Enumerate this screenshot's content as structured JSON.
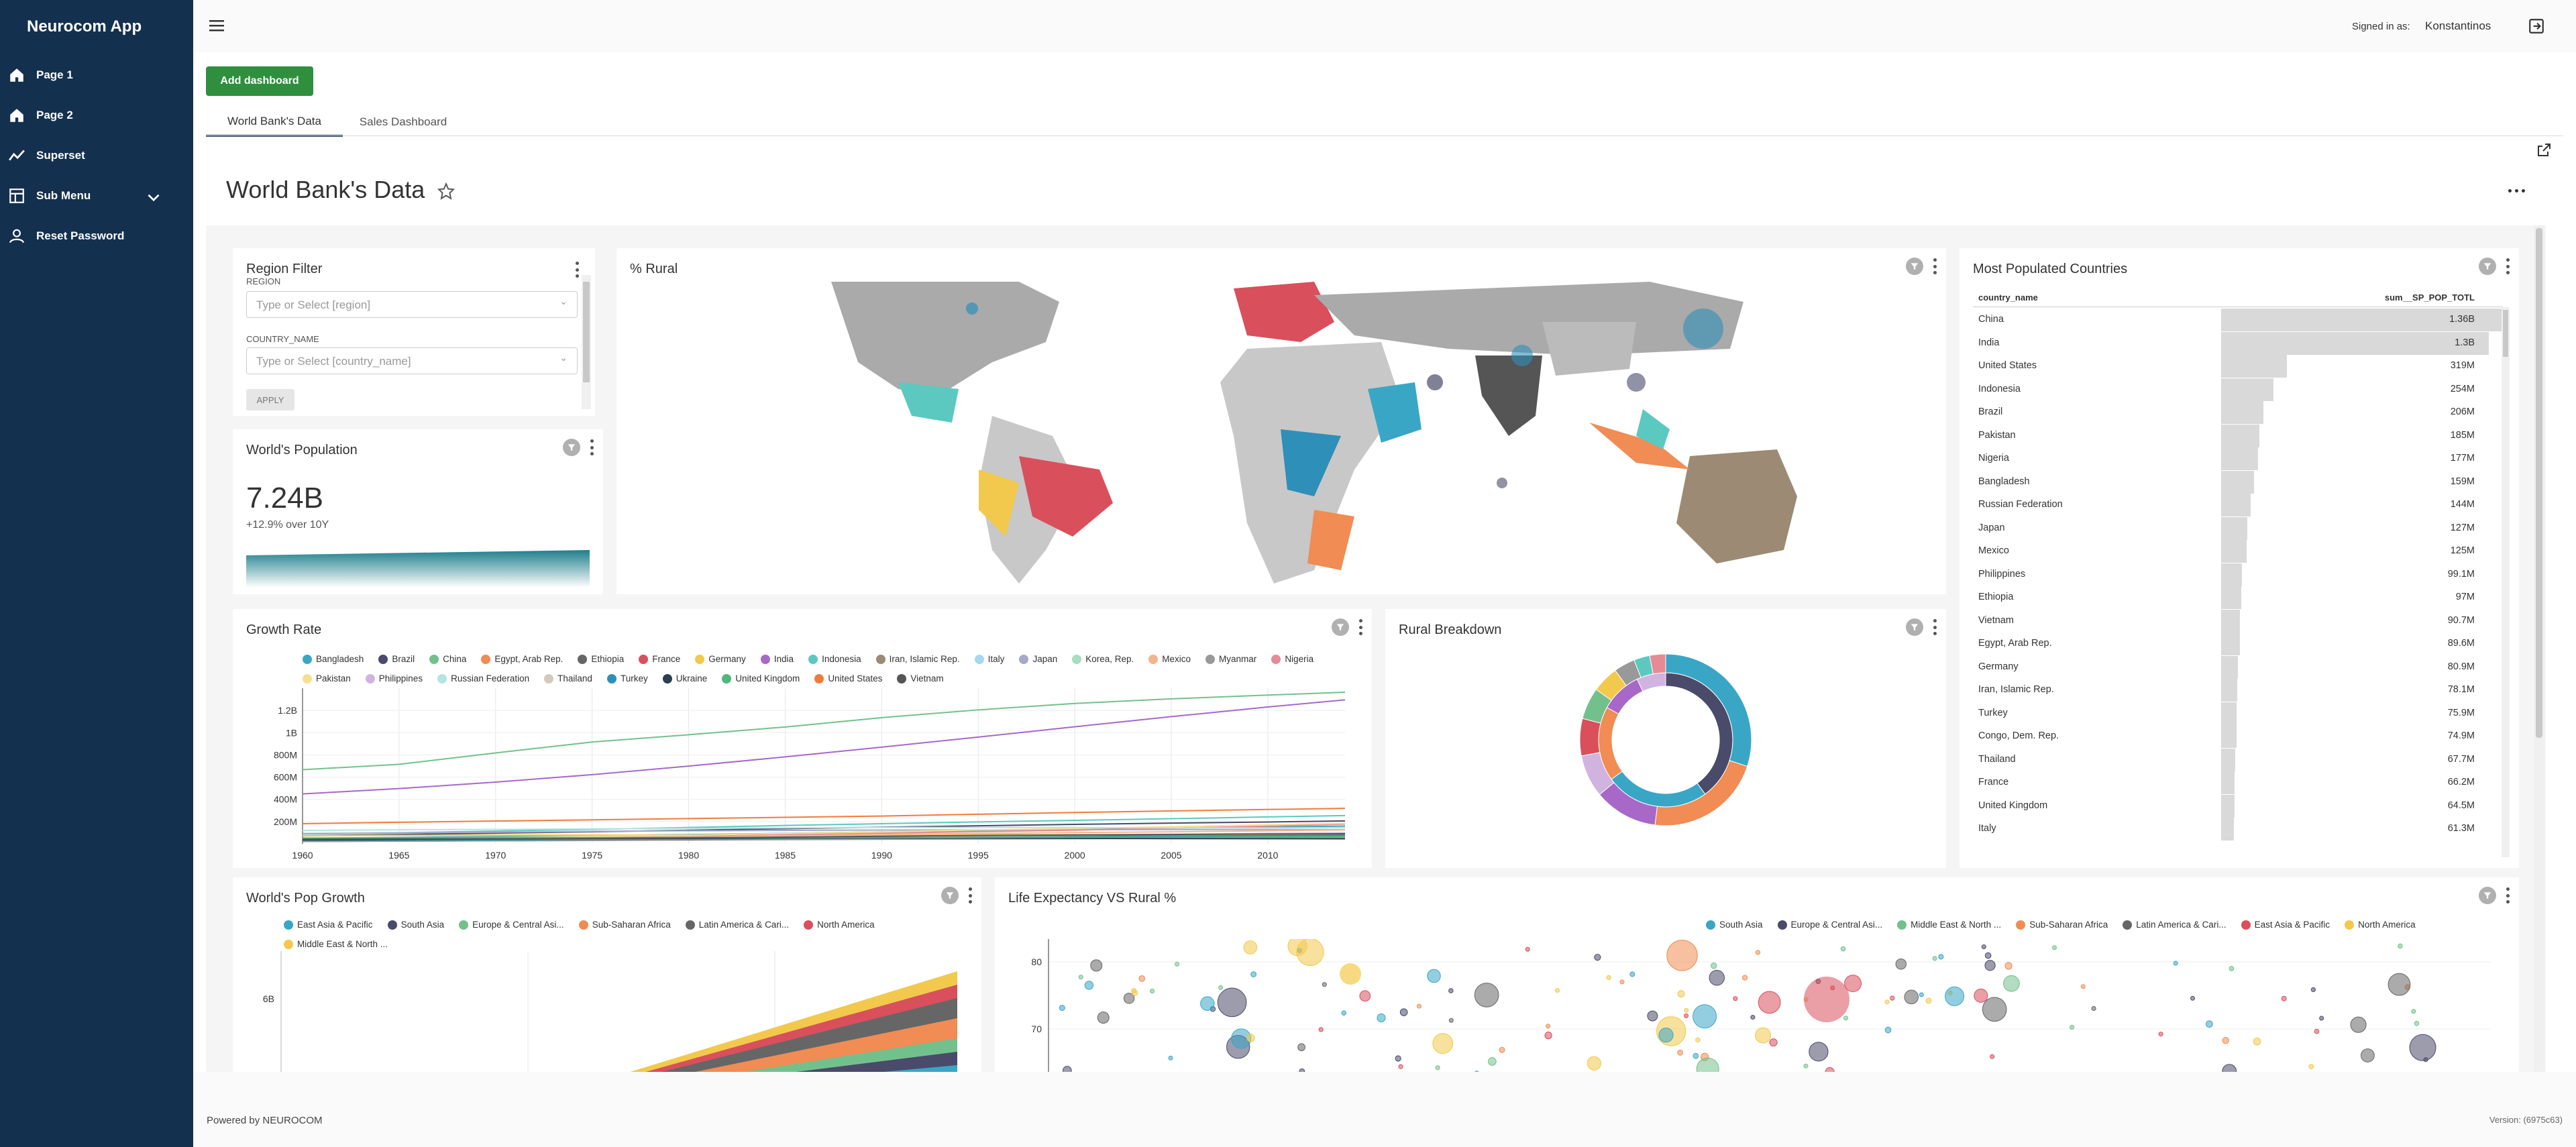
{
  "app": {
    "title": "Neurocom App"
  },
  "sidebar": {
    "items": [
      {
        "label": "Page 1",
        "icon": "home-icon"
      },
      {
        "label": "Page 2",
        "icon": "home-icon"
      },
      {
        "label": "Superset",
        "icon": "trend-chart-icon"
      },
      {
        "label": "Sub Menu",
        "icon": "table-icon"
      },
      {
        "label": "Reset Password",
        "icon": "user-icon"
      }
    ]
  },
  "header": {
    "signed_in_label": "Signed in as:",
    "user": "Konstantinos"
  },
  "toolbar": {
    "add_dashboard": "Add dashboard"
  },
  "tabs": [
    {
      "label": "World Bank's Data",
      "active": true
    },
    {
      "label": "Sales Dashboard",
      "active": false
    }
  ],
  "dashboard": {
    "title": "World Bank's Data"
  },
  "region_filter": {
    "title": "Region Filter",
    "region_label": "REGION",
    "region_placeholder": "Type or Select [region]",
    "country_label": "COUNTRY_NAME",
    "country_placeholder": "Type or Select [country_name]",
    "apply": "APPLY"
  },
  "population": {
    "title": "World's Population",
    "value": "7.24B",
    "subtitle": "+12.9% over 10Y"
  },
  "rural_map": {
    "title": "% Rural"
  },
  "most_populated": {
    "title": "Most Populated Countries",
    "col1": "country_name",
    "col2": "sum__SP_POP_TOTL",
    "rows": [
      {
        "name": "China",
        "value": "1.36B",
        "n": 1364
      },
      {
        "name": "India",
        "value": "1.3B",
        "n": 1295
      },
      {
        "name": "United States",
        "value": "319M",
        "n": 319
      },
      {
        "name": "Indonesia",
        "value": "254M",
        "n": 254
      },
      {
        "name": "Brazil",
        "value": "206M",
        "n": 206
      },
      {
        "name": "Pakistan",
        "value": "185M",
        "n": 185
      },
      {
        "name": "Nigeria",
        "value": "177M",
        "n": 177
      },
      {
        "name": "Bangladesh",
        "value": "159M",
        "n": 159
      },
      {
        "name": "Russian Federation",
        "value": "144M",
        "n": 144
      },
      {
        "name": "Japan",
        "value": "127M",
        "n": 127
      },
      {
        "name": "Mexico",
        "value": "125M",
        "n": 125
      },
      {
        "name": "Philippines",
        "value": "99.1M",
        "n": 99.1
      },
      {
        "name": "Ethiopia",
        "value": "97M",
        "n": 97
      },
      {
        "name": "Vietnam",
        "value": "90.7M",
        "n": 90.7
      },
      {
        "name": "Egypt, Arab Rep.",
        "value": "89.6M",
        "n": 89.6
      },
      {
        "name": "Germany",
        "value": "80.9M",
        "n": 80.9
      },
      {
        "name": "Iran, Islamic Rep.",
        "value": "78.1M",
        "n": 78.1
      },
      {
        "name": "Turkey",
        "value": "75.9M",
        "n": 75.9
      },
      {
        "name": "Congo, Dem. Rep.",
        "value": "74.9M",
        "n": 74.9
      },
      {
        "name": "Thailand",
        "value": "67.7M",
        "n": 67.7
      },
      {
        "name": "France",
        "value": "66.2M",
        "n": 66.2
      },
      {
        "name": "United Kingdom",
        "value": "64.5M",
        "n": 64.5
      },
      {
        "name": "Italy",
        "value": "61.3M",
        "n": 61.3
      }
    ]
  },
  "growth_rate": {
    "title": "Growth Rate"
  },
  "rural_breakdown": {
    "title": "Rural Breakdown"
  },
  "pop_growth": {
    "title": "World's Pop Growth"
  },
  "life_expectancy": {
    "title": "Life Expectancy VS Rural %"
  },
  "footer": {
    "powered": "Powered by NEUROCOM",
    "version": "Version: (6975c63)"
  },
  "chart_data": [
    {
      "type": "line",
      "title": "Growth Rate",
      "x": [
        1960,
        1965,
        1970,
        1975,
        1980,
        1985,
        1990,
        1995,
        2000,
        2005,
        2010,
        2014
      ],
      "xticks": [
        "1960",
        "1965",
        "1970",
        "1975",
        "1980",
        "1985",
        "1990",
        "1995",
        "2000",
        "2005",
        "2010"
      ],
      "yticks": [
        "200M",
        "400M",
        "600M",
        "800M",
        "1B",
        "1.2B"
      ],
      "ylim": [
        0,
        1400
      ],
      "series": [
        {
          "name": "Bangladesh",
          "color": "#3aa6c6",
          "values": [
            50,
            57,
            66,
            75,
            83,
            94,
            107,
            120,
            131,
            142,
            152,
            159
          ]
        },
        {
          "name": "Brazil",
          "color": "#4a4a6a",
          "values": [
            72,
            84,
            96,
            108,
            122,
            136,
            150,
            162,
            175,
            186,
            196,
            206
          ]
        },
        {
          "name": "China",
          "color": "#72c18c",
          "values": [
            667,
            715,
            818,
            916,
            981,
            1051,
            1135,
            1205,
            1263,
            1304,
            1338,
            1364
          ]
        },
        {
          "name": "Egypt, Arab Rep.",
          "color": "#f08c54",
          "values": [
            27,
            31,
            35,
            39,
            44,
            50,
            57,
            62,
            68,
            75,
            83,
            89.6
          ]
        },
        {
          "name": "Ethiopia",
          "color": "#666666",
          "values": [
            22,
            25,
            29,
            33,
            35,
            41,
            48,
            57,
            66,
            76,
            87,
            97
          ]
        },
        {
          "name": "France",
          "color": "#d94f5c",
          "values": [
            46,
            49,
            52,
            54,
            55,
            56,
            58,
            59,
            60,
            63,
            65,
            66.2
          ]
        },
        {
          "name": "Germany",
          "color": "#f2c94c",
          "values": [
            73,
            76,
            78,
            79,
            78,
            78,
            79,
            82,
            82,
            82,
            81,
            80.9
          ]
        },
        {
          "name": "India",
          "color": "#a868c8",
          "values": [
            449,
            497,
            555,
            622,
            699,
            782,
            870,
            960,
            1053,
            1144,
            1231,
            1295
          ]
        },
        {
          "name": "Indonesia",
          "color": "#5bc9c0",
          "values": [
            88,
            100,
            115,
            130,
            147,
            165,
            181,
            197,
            211,
            226,
            242,
            254
          ]
        },
        {
          "name": "Iran, Islamic Rep.",
          "color": "#9c8a74",
          "values": [
            22,
            25,
            29,
            33,
            39,
            48,
            56,
            60,
            66,
            70,
            74,
            78.1
          ]
        },
        {
          "name": "Italy",
          "color": "#a6d8f0",
          "values": [
            50,
            52,
            54,
            55,
            56,
            57,
            57,
            57,
            57,
            58,
            59,
            61.3
          ]
        },
        {
          "name": "Japan",
          "color": "#a8a8c8",
          "values": [
            93,
            98,
            104,
            112,
            117,
            121,
            124,
            125,
            127,
            128,
            128,
            127
          ]
        },
        {
          "name": "Korea, Rep.",
          "color": "#a7ddc0",
          "values": [
            25,
            28,
            32,
            35,
            38,
            41,
            43,
            45,
            47,
            48,
            49,
            50
          ]
        },
        {
          "name": "Mexico",
          "color": "#f4b48c",
          "values": [
            38,
            44,
            51,
            59,
            68,
            75,
            84,
            93,
            101,
            108,
            117,
            125
          ]
        },
        {
          "name": "Myanmar",
          "color": "#999999",
          "values": [
            21,
            24,
            27,
            30,
            34,
            38,
            41,
            44,
            47,
            49,
            51,
            53
          ]
        },
        {
          "name": "Nigeria",
          "color": "#e78a96",
          "values": [
            45,
            51,
            57,
            65,
            74,
            85,
            96,
            109,
            123,
            140,
            159,
            177
          ]
        },
        {
          "name": "Pakistan",
          "color": "#f6df8f",
          "values": [
            45,
            51,
            58,
            67,
            78,
            93,
            107,
            125,
            138,
            154,
            172,
            185
          ]
        },
        {
          "name": "Philippines",
          "color": "#d1b3e0",
          "values": [
            26,
            31,
            36,
            42,
            48,
            55,
            62,
            70,
            78,
            86,
            94,
            99.1
          ]
        },
        {
          "name": "Russian Federation",
          "color": "#b3e3e3",
          "values": [
            120,
            127,
            130,
            134,
            139,
            143,
            148,
            148,
            147,
            143,
            143,
            144
          ]
        },
        {
          "name": "Thailand",
          "color": "#d4c9bd",
          "values": [
            27,
            31,
            36,
            42,
            47,
            52,
            57,
            60,
            63,
            66,
            67,
            67.7
          ]
        },
        {
          "name": "Turkey",
          "color": "#2e8fb8",
          "values": [
            28,
            31,
            35,
            40,
            44,
            50,
            54,
            59,
            64,
            68,
            73,
            75.9
          ]
        },
        {
          "name": "Ukraine",
          "color": "#2c3e50",
          "values": [
            43,
            45,
            47,
            49,
            50,
            51,
            52,
            51,
            49,
            47,
            46,
            45
          ]
        },
        {
          "name": "United Kingdom",
          "color": "#4fb87a",
          "values": [
            52,
            54,
            56,
            56,
            56,
            57,
            57,
            58,
            59,
            60,
            63,
            64.5
          ]
        },
        {
          "name": "United States",
          "color": "#f07c3c",
          "values": [
            181,
            194,
            205,
            216,
            227,
            238,
            250,
            266,
            282,
            296,
            309,
            319
          ]
        },
        {
          "name": "Vietnam",
          "color": "#555555",
          "values": [
            32,
            37,
            43,
            48,
            54,
            61,
            68,
            75,
            80,
            84,
            88,
            90.7
          ]
        }
      ]
    },
    {
      "type": "area",
      "title": "World's Pop Growth",
      "yticks": [
        "6B"
      ],
      "series": [
        {
          "name": "East Asia & Pacific",
          "color": "#3aa6c6"
        },
        {
          "name": "South Asia",
          "color": "#4a4a6a"
        },
        {
          "name": "Europe & Central Asi...",
          "color": "#72c18c"
        },
        {
          "name": "Sub-Saharan Africa",
          "color": "#f08c54"
        },
        {
          "name": "Latin America & Cari...",
          "color": "#666666"
        },
        {
          "name": "North America",
          "color": "#d94f5c"
        },
        {
          "name": "Middle East & North ...",
          "color": "#f2c94c"
        }
      ]
    },
    {
      "type": "scatter",
      "title": "Life Expectancy VS Rural %",
      "yticks": [
        "80",
        "70"
      ],
      "series": [
        {
          "name": "South Asia",
          "color": "#3aa6c6"
        },
        {
          "name": "Europe & Central Asi...",
          "color": "#4a4a6a"
        },
        {
          "name": "Middle East & North ...",
          "color": "#72c18c"
        },
        {
          "name": "Sub-Saharan Africa",
          "color": "#f08c54"
        },
        {
          "name": "Latin America & Cari...",
          "color": "#666666"
        },
        {
          "name": "East Asia & Pacific",
          "color": "#d94f5c"
        },
        {
          "name": "North America",
          "color": "#f2c94c"
        }
      ]
    },
    {
      "type": "pie",
      "title": "Rural Breakdown",
      "series": [
        {
          "name": "inner",
          "values": [
            40,
            25,
            18,
            10,
            7
          ]
        },
        {
          "name": "outer",
          "values": [
            30,
            22,
            12,
            8,
            7,
            6,
            5,
            4,
            3,
            3
          ]
        }
      ]
    }
  ]
}
